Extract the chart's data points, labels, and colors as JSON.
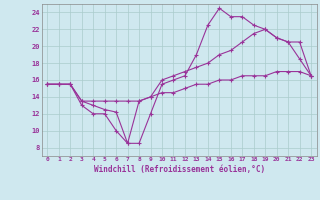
{
  "xlabel": "Windchill (Refroidissement éolien,°C)",
  "bg_color": "#cfe8ef",
  "line_color": "#993399",
  "grid_color": "#aacccc",
  "xlim": [
    -0.5,
    23.5
  ],
  "ylim": [
    7,
    25
  ],
  "yticks": [
    8,
    10,
    12,
    14,
    16,
    18,
    20,
    22,
    24
  ],
  "xticks": [
    0,
    1,
    2,
    3,
    4,
    5,
    6,
    7,
    8,
    9,
    10,
    11,
    12,
    13,
    14,
    15,
    16,
    17,
    18,
    19,
    20,
    21,
    22,
    23
  ],
  "curve1_x": [
    0,
    1,
    2,
    3,
    4,
    5,
    6,
    7,
    8,
    9,
    10,
    11,
    12,
    13,
    14,
    15,
    16,
    17,
    18,
    19,
    20,
    21,
    22,
    23
  ],
  "curve1_y": [
    15.5,
    15.5,
    15.5,
    13.0,
    12.0,
    12.0,
    10.0,
    8.5,
    8.5,
    12.0,
    15.5,
    16.0,
    16.5,
    19.0,
    22.5,
    24.5,
    23.5,
    23.5,
    22.5,
    22.0,
    21.0,
    20.5,
    18.5,
    16.5
  ],
  "curve2_x": [
    0,
    1,
    2,
    3,
    4,
    5,
    6,
    7,
    8,
    9,
    10,
    11,
    12,
    13,
    14,
    15,
    16,
    17,
    18,
    19,
    20,
    21,
    22,
    23
  ],
  "curve2_y": [
    15.5,
    15.5,
    15.5,
    13.5,
    13.0,
    12.5,
    12.2,
    8.5,
    13.5,
    14.0,
    16.0,
    16.5,
    17.0,
    17.5,
    18.0,
    19.0,
    19.5,
    20.5,
    21.5,
    22.0,
    21.0,
    20.5,
    20.5,
    16.5
  ],
  "curve3_x": [
    0,
    1,
    2,
    3,
    4,
    5,
    6,
    7,
    8,
    9,
    10,
    11,
    12,
    13,
    14,
    15,
    16,
    17,
    18,
    19,
    20,
    21,
    22,
    23
  ],
  "curve3_y": [
    15.5,
    15.5,
    15.5,
    13.5,
    13.5,
    13.5,
    13.5,
    13.5,
    13.5,
    14.0,
    14.5,
    14.5,
    15.0,
    15.5,
    15.5,
    16.0,
    16.0,
    16.5,
    16.5,
    16.5,
    17.0,
    17.0,
    17.0,
    16.5
  ]
}
